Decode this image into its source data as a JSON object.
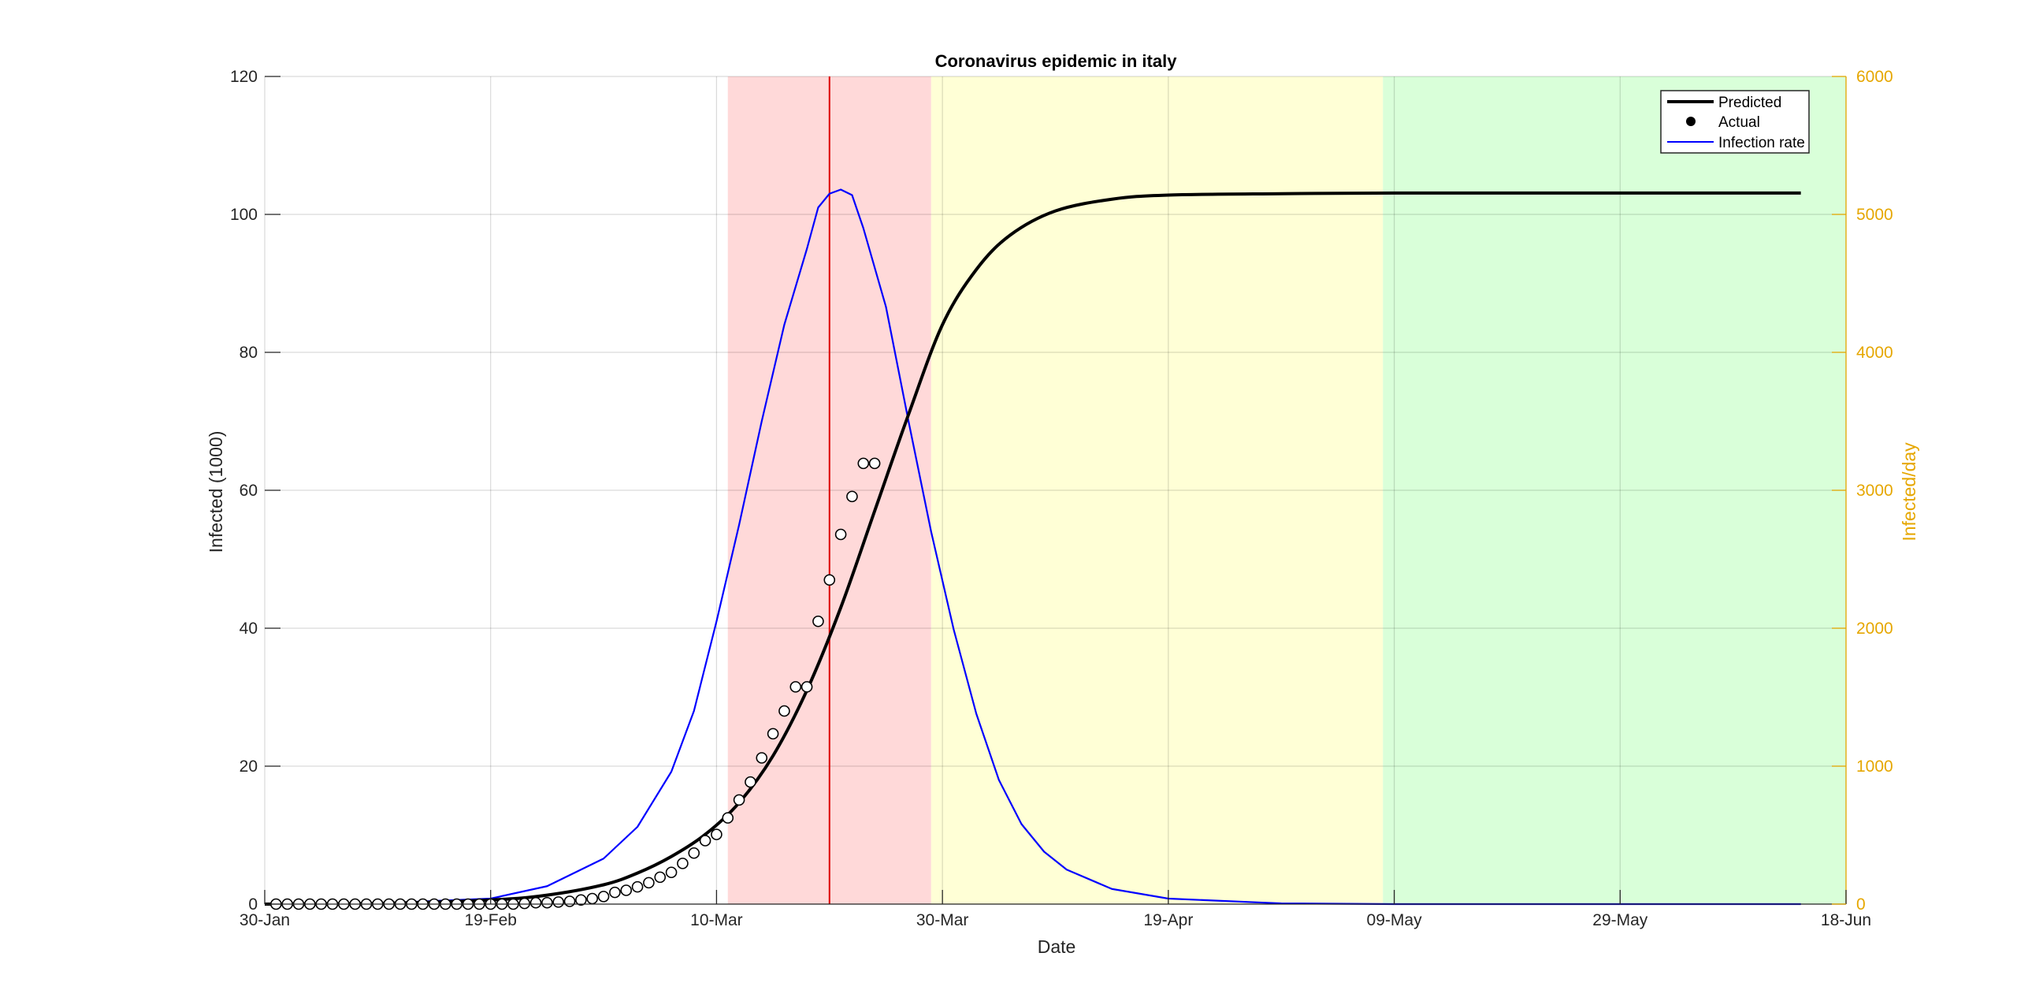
{
  "chart_data": {
    "type": "line",
    "title": "Coronavirus epidemic in italy",
    "xlabel": "Date",
    "ylabel_left": "Infected (1000)",
    "ylabel_right": "Infected/day",
    "x_range": [
      "2020-01-30",
      "2020-06-18"
    ],
    "x_ticks": [
      "30-Jan",
      "19-Feb",
      "10-Mar",
      "30-Mar",
      "19-Apr",
      "09-May",
      "29-May",
      "18-Jun"
    ],
    "x_tick_dates": [
      "2020-01-30",
      "2020-02-19",
      "2020-03-10",
      "2020-03-30",
      "2020-04-19",
      "2020-05-09",
      "2020-05-29",
      "2020-06-18"
    ],
    "ylim_left": [
      0,
      120
    ],
    "yticks_left": [
      0,
      20,
      40,
      60,
      80,
      100,
      120
    ],
    "ylim_right": [
      0,
      6000
    ],
    "yticks_right": [
      0,
      1000,
      2000,
      3000,
      4000,
      5000,
      6000
    ],
    "grid": true,
    "legend_position": "top-right",
    "legend": [
      "Predicted",
      "Actual",
      "Infection rate"
    ],
    "colors": {
      "predicted": "#000000",
      "actual_marker": "#000000",
      "infection_rate": "#0000ff",
      "right_axis": "#e6a700",
      "peak_line": "#dd0000",
      "phase_red": "#ffd9d9",
      "phase_yellow": "#ffffd6",
      "phase_green": "#d9ffd9"
    },
    "phases": [
      {
        "color": "phase_red",
        "start": "2020-03-11",
        "end": "2020-03-29"
      },
      {
        "color": "phase_yellow",
        "start": "2020-03-29",
        "end": "2020-05-08"
      },
      {
        "color": "phase_green",
        "start": "2020-05-08",
        "end": "2020-06-18"
      }
    ],
    "peak_line_date": "2020-03-20",
    "series": [
      {
        "name": "Predicted",
        "axis": "left",
        "x": [
          "2020-01-30",
          "2020-02-09",
          "2020-02-19",
          "2020-02-24",
          "2020-02-29",
          "2020-03-03",
          "2020-03-06",
          "2020-03-09",
          "2020-03-12",
          "2020-03-15",
          "2020-03-18",
          "2020-03-21",
          "2020-03-24",
          "2020-03-27",
          "2020-03-30",
          "2020-04-02",
          "2020-04-05",
          "2020-04-09",
          "2020-04-14",
          "2020-04-19",
          "2020-04-29",
          "2020-05-09",
          "2020-05-29",
          "2020-06-14"
        ],
        "y": [
          0.0,
          0.1,
          0.6,
          1.3,
          2.8,
          4.5,
          6.9,
          10.1,
          14.7,
          21.5,
          31.0,
          43.0,
          57.0,
          71.0,
          84.0,
          92.0,
          97.0,
          100.5,
          102.2,
          102.8,
          103.0,
          103.1,
          103.1,
          103.1
        ]
      },
      {
        "name": "Actual",
        "axis": "left",
        "x": [
          "2020-01-31",
          "2020-02-01",
          "2020-02-02",
          "2020-02-03",
          "2020-02-04",
          "2020-02-05",
          "2020-02-06",
          "2020-02-07",
          "2020-02-08",
          "2020-02-09",
          "2020-02-10",
          "2020-02-11",
          "2020-02-12",
          "2020-02-13",
          "2020-02-14",
          "2020-02-15",
          "2020-02-16",
          "2020-02-17",
          "2020-02-18",
          "2020-02-19",
          "2020-02-20",
          "2020-02-21",
          "2020-02-22",
          "2020-02-23",
          "2020-02-24",
          "2020-02-25",
          "2020-02-26",
          "2020-02-27",
          "2020-02-28",
          "2020-02-29",
          "2020-03-01",
          "2020-03-02",
          "2020-03-03",
          "2020-03-04",
          "2020-03-05",
          "2020-03-06",
          "2020-03-07",
          "2020-03-08",
          "2020-03-09",
          "2020-03-10",
          "2020-03-11",
          "2020-03-12",
          "2020-03-13",
          "2020-03-14",
          "2020-03-15",
          "2020-03-16",
          "2020-03-17",
          "2020-03-18",
          "2020-03-19",
          "2020-03-20",
          "2020-03-21",
          "2020-03-22",
          "2020-03-23",
          "2020-03-24"
        ],
        "y": [
          0,
          0,
          0,
          0,
          0,
          0,
          0,
          0,
          0,
          0,
          0,
          0,
          0,
          0,
          0,
          0,
          0,
          0,
          0,
          0,
          0,
          0,
          0.1,
          0.2,
          0.2,
          0.3,
          0.4,
          0.6,
          0.8,
          1.1,
          1.7,
          2.0,
          2.5,
          3.1,
          3.9,
          4.6,
          5.9,
          7.4,
          9.2,
          10.1,
          12.5,
          15.1,
          17.7,
          21.2,
          24.7,
          28.0,
          31.5,
          31.5,
          41.0,
          47.0,
          53.6,
          59.1,
          63.9,
          63.9
        ]
      },
      {
        "name": "Infection rate",
        "axis": "right",
        "x": [
          "2020-01-30",
          "2020-02-09",
          "2020-02-19",
          "2020-02-24",
          "2020-02-29",
          "2020-03-03",
          "2020-03-06",
          "2020-03-08",
          "2020-03-10",
          "2020-03-12",
          "2020-03-14",
          "2020-03-16",
          "2020-03-18",
          "2020-03-19",
          "2020-03-20",
          "2020-03-21",
          "2020-03-22",
          "2020-03-23",
          "2020-03-25",
          "2020-03-27",
          "2020-03-29",
          "2020-03-31",
          "2020-04-02",
          "2020-04-04",
          "2020-04-06",
          "2020-04-08",
          "2020-04-10",
          "2020-04-14",
          "2020-04-19",
          "2020-04-29",
          "2020-05-09",
          "2020-06-14"
        ],
        "y": [
          0,
          5,
          40,
          130,
          330,
          560,
          960,
          1400,
          2050,
          2750,
          3500,
          4200,
          4750,
          5050,
          5150,
          5180,
          5140,
          4900,
          4330,
          3500,
          2700,
          1990,
          1380,
          900,
          580,
          380,
          250,
          110,
          40,
          5,
          0,
          0
        ]
      }
    ]
  }
}
